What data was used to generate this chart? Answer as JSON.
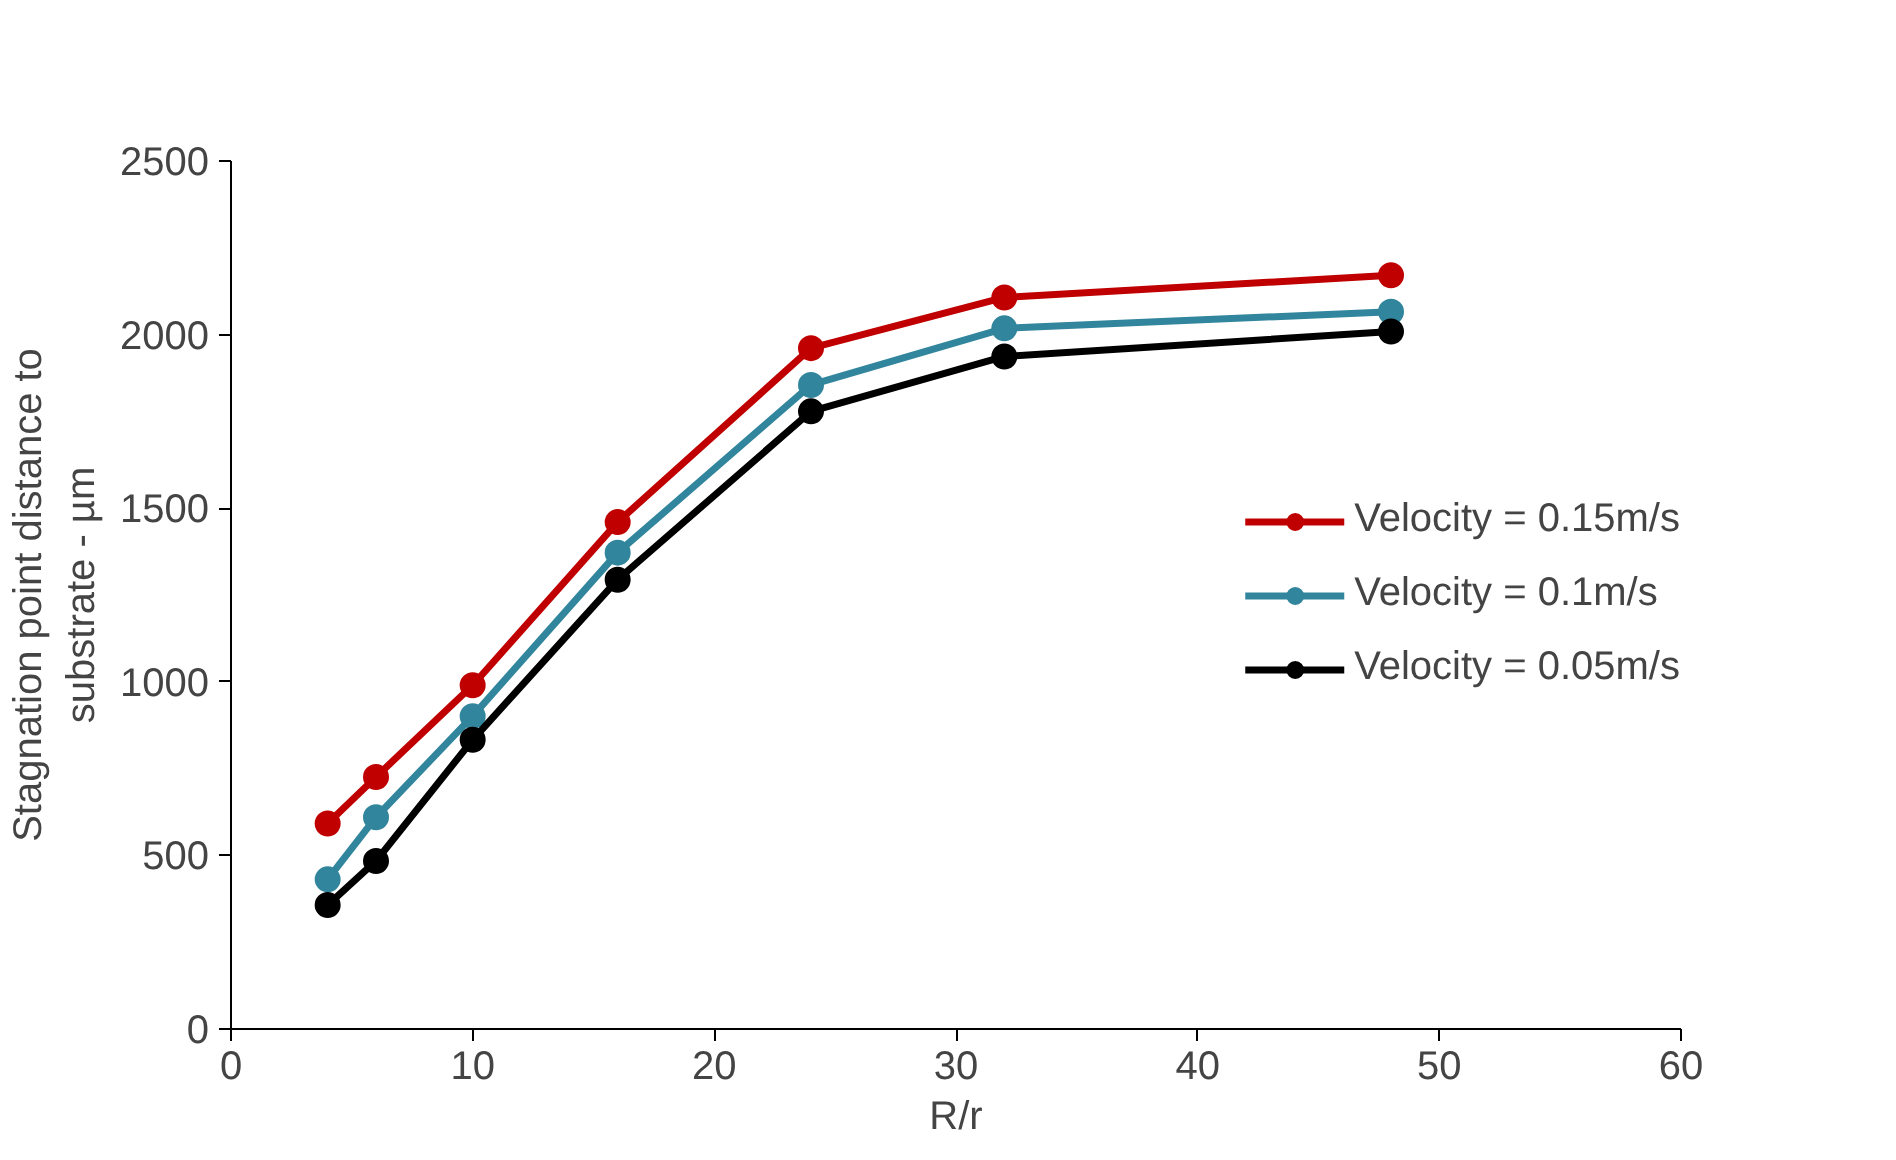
{
  "chart_data": {
    "type": "line",
    "xlabel": "R/r",
    "ylabel": "Stagnation point distance to\nsubstrate - µm",
    "x": [
      4,
      6,
      10,
      16,
      24,
      32,
      48
    ],
    "series": [
      {
        "name": "Velocity = 0.15m/s",
        "color": "#c00000",
        "values": [
          592,
          726,
          990,
          1460,
          1961,
          2107,
          2171
        ]
      },
      {
        "name": "Velocity = 0.1m/s",
        "color": "#31859c",
        "values": [
          431,
          610,
          901,
          1372,
          1855,
          2018,
          2066
        ]
      },
      {
        "name": "Velocity = 0.05m/s",
        "color": "#000000",
        "values": [
          357,
          484,
          833,
          1294,
          1779,
          1937,
          2009
        ]
      }
    ],
    "xlim": [
      0,
      60
    ],
    "xticks": [
      0,
      10,
      20,
      30,
      40,
      50,
      60
    ],
    "ylim": [
      0,
      2500
    ],
    "yticks": [
      0,
      500,
      1000,
      1500,
      2000,
      2500
    ],
    "grid": false,
    "legend": "right",
    "marker": "circle",
    "line_style": "solid"
  }
}
